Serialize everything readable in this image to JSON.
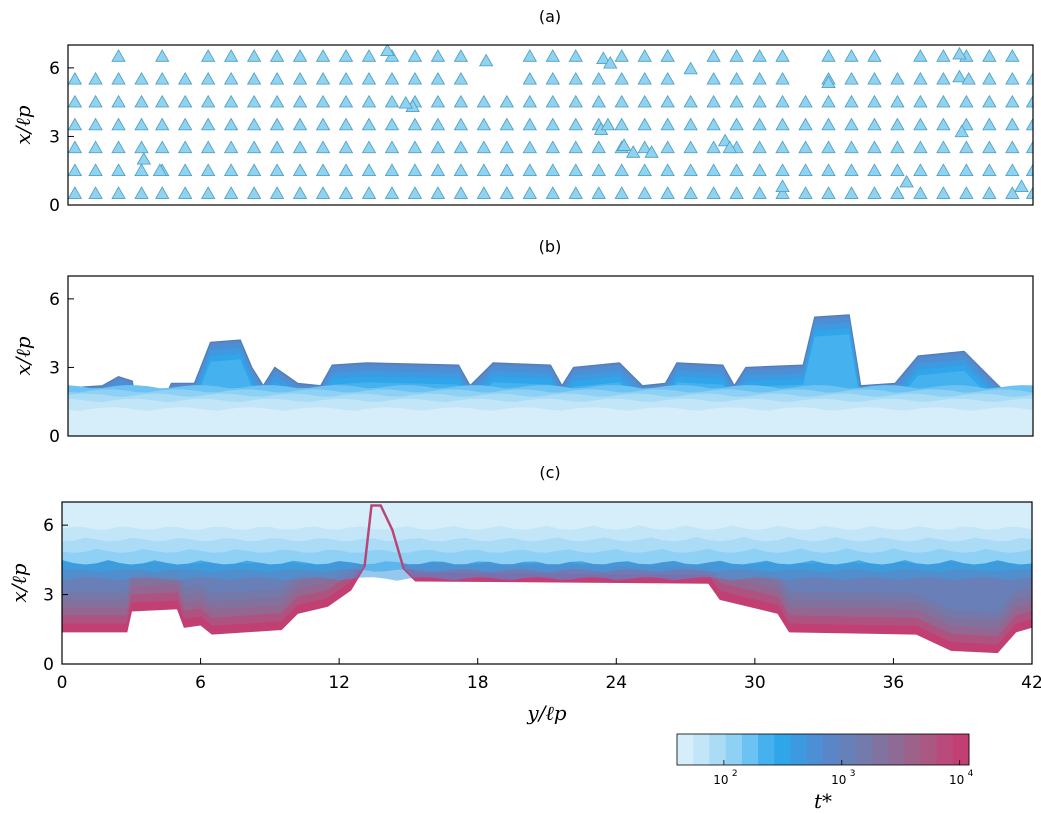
{
  "chart_data": [
    {
      "type": "scatter",
      "panel_label": "(a)",
      "ylabel": "x/ℓp",
      "xlim": [
        0,
        42
      ],
      "ylim": [
        0,
        7
      ],
      "yticks": [
        "0",
        "3",
        "6"
      ],
      "ytick_values": [
        0,
        3,
        6
      ],
      "marker": "triangle",
      "marker_color": "#8fd3f0",
      "rows": [
        {
          "y": 0.5,
          "x": [
            0.3,
            1.2,
            2.2,
            3.2,
            4.1,
            5.1,
            6.1,
            7.1,
            8.1,
            9.1,
            10.1,
            11.1,
            12.1,
            13.1,
            14.1,
            15.1,
            16.1,
            17.1,
            18.1,
            19.1,
            20.1,
            21.1,
            22.1,
            23.1,
            24.1,
            25.1,
            26.1,
            27.1,
            28.1,
            29.1,
            30.1,
            31.1,
            32.1,
            33.1,
            34.1,
            35.1,
            36.1,
            37.1,
            38.1,
            39.1,
            40.1,
            41.1,
            42.0
          ]
        },
        {
          "y": 1.5,
          "x": [
            0.3,
            1.2,
            2.2,
            3.2,
            4.1,
            5.1,
            6.1,
            7.1,
            8.1,
            9.1,
            10.1,
            11.1,
            12.1,
            13.1,
            14.1,
            15.1,
            16.1,
            17.1,
            18.1,
            19.1,
            20.1,
            21.1,
            22.1,
            23.1,
            24.1,
            25.1,
            26.1,
            27.1,
            28.1,
            29.1,
            30.1,
            31.1,
            32.1,
            33.1,
            34.1,
            35.1,
            36.1,
            37.1,
            38.1,
            39.1,
            40.1,
            41.1,
            42.0
          ]
        },
        {
          "y": 2.5,
          "x": [
            0.3,
            1.2,
            2.2,
            3.2,
            4.1,
            5.1,
            6.1,
            7.1,
            8.1,
            9.1,
            10.1,
            11.1,
            12.1,
            13.1,
            14.1,
            15.1,
            16.1,
            17.1,
            18.1,
            19.1,
            20.1,
            21.1,
            22.1,
            23.1,
            24.1,
            25.1,
            26.1,
            27.1,
            28.1,
            29.1,
            30.1,
            31.1,
            32.1,
            33.1,
            34.1,
            35.1,
            36.1,
            37.1,
            38.1,
            39.1,
            40.1,
            41.1,
            42.0
          ]
        },
        {
          "y": 3.5,
          "x": [
            0.3,
            1.2,
            2.2,
            3.2,
            4.1,
            5.1,
            6.1,
            7.1,
            8.1,
            9.1,
            10.1,
            11.1,
            12.1,
            13.1,
            14.1,
            15.1,
            16.1,
            17.1,
            18.1,
            19.1,
            20.1,
            21.1,
            22.1,
            23.1,
            24.1,
            25.1,
            26.1,
            27.1,
            28.1,
            29.1,
            30.1,
            31.1,
            32.1,
            33.1,
            34.1,
            35.1,
            36.1,
            37.1,
            38.1,
            39.1,
            40.1,
            41.1,
            42.0
          ]
        },
        {
          "y": 4.5,
          "x": [
            0.3,
            1.2,
            2.2,
            3.2,
            4.1,
            5.1,
            6.1,
            7.1,
            8.1,
            9.1,
            10.1,
            11.1,
            12.1,
            13.1,
            14.1,
            15.1,
            16.1,
            17.1,
            18.1,
            19.1,
            20.1,
            21.1,
            22.1,
            23.1,
            24.1,
            25.1,
            26.1,
            27.1,
            28.1,
            29.1,
            30.1,
            31.1,
            32.1,
            33.1,
            34.1,
            35.1,
            36.1,
            37.1,
            38.1,
            39.1,
            40.1,
            41.1,
            42.0
          ]
        },
        {
          "y": 5.5,
          "x": [
            0.3,
            1.2,
            2.2,
            3.2,
            4.1,
            5.1,
            6.1,
            7.1,
            8.1,
            9.1,
            10.1,
            11.1,
            12.1,
            13.1,
            14.1,
            15.1,
            16.1,
            17.1,
            20.1,
            21.1,
            22.1,
            23.1,
            24.1,
            25.1,
            26.1,
            28.1,
            29.1,
            30.1,
            31.1,
            33.1,
            34.1,
            35.1,
            36.1,
            37.1,
            38.1,
            40.1,
            41.1,
            42.0
          ]
        },
        {
          "y": 6.5,
          "x": [
            2.2,
            4.1,
            6.1,
            7.1,
            8.1,
            9.1,
            10.1,
            11.1,
            12.1,
            13.1,
            14.1,
            15.1,
            16.1,
            17.1,
            20.1,
            21.1,
            22.1,
            24.1,
            25.1,
            26.1,
            28.1,
            29.1,
            30.1,
            31.1,
            33.1,
            34.1,
            35.1,
            37.1,
            38.1,
            39.1,
            40.1,
            41.1
          ]
        }
      ],
      "extra_points": [
        [
          13.9,
          6.75
        ],
        [
          18.2,
          6.3
        ],
        [
          23.3,
          6.4
        ],
        [
          23.6,
          6.2
        ],
        [
          27.1,
          5.95
        ],
        [
          33.1,
          5.35
        ],
        [
          38.8,
          6.6
        ],
        [
          38.8,
          5.6
        ],
        [
          39.2,
          5.5
        ],
        [
          15.0,
          4.3
        ],
        [
          14.7,
          4.45
        ],
        [
          23.2,
          3.3
        ],
        [
          23.5,
          3.5
        ],
        [
          38.9,
          3.2
        ],
        [
          24.2,
          2.6
        ],
        [
          24.6,
          2.3
        ],
        [
          25.4,
          2.3
        ],
        [
          28.6,
          2.8
        ],
        [
          28.8,
          2.5
        ],
        [
          3.3,
          2.0
        ],
        [
          4.0,
          1.5
        ],
        [
          31.1,
          0.8
        ],
        [
          36.5,
          1.0
        ],
        [
          41.5,
          0.8
        ]
      ]
    },
    {
      "type": "heatmap",
      "panel_label": "(b)",
      "ylabel": "x/ℓp",
      "xlim": [
        0,
        42
      ],
      "ylim": [
        0,
        7
      ],
      "yticks": [
        "0",
        "3",
        "6"
      ],
      "ytick_values": [
        0,
        3,
        6
      ],
      "front_profile": [
        [
          0,
          2.1
        ],
        [
          1.5,
          2.2
        ],
        [
          2.2,
          2.6
        ],
        [
          2.8,
          2.4
        ],
        [
          3.0,
          1.25
        ],
        [
          4.0,
          1.25
        ],
        [
          4.5,
          2.3
        ],
        [
          5.5,
          2.3
        ],
        [
          6.2,
          4.1
        ],
        [
          7.5,
          4.2
        ],
        [
          8.0,
          3.0
        ],
        [
          8.5,
          2.2
        ],
        [
          9.0,
          3.0
        ],
        [
          10.0,
          2.3
        ],
        [
          11.0,
          2.2
        ],
        [
          11.5,
          3.1
        ],
        [
          13.0,
          3.2
        ],
        [
          17.0,
          3.1
        ],
        [
          17.5,
          2.2
        ],
        [
          18.5,
          3.2
        ],
        [
          21.0,
          3.1
        ],
        [
          21.5,
          2.2
        ],
        [
          22.0,
          3.0
        ],
        [
          24.0,
          3.2
        ],
        [
          25.0,
          2.2
        ],
        [
          26.0,
          2.3
        ],
        [
          26.5,
          3.2
        ],
        [
          28.5,
          3.1
        ],
        [
          29.0,
          2.2
        ],
        [
          29.5,
          3.0
        ],
        [
          32.0,
          3.1
        ],
        [
          32.5,
          5.2
        ],
        [
          34.0,
          5.3
        ],
        [
          34.5,
          2.2
        ],
        [
          36.0,
          2.3
        ],
        [
          37.0,
          3.5
        ],
        [
          39.0,
          3.7
        ],
        [
          40.5,
          2.2
        ],
        [
          41.5,
          1.3
        ],
        [
          42,
          1.3
        ]
      ]
    },
    {
      "type": "heatmap",
      "panel_label": "(c)",
      "xlabel": "y/ℓp",
      "ylabel": "x/ℓp",
      "xlim": [
        0,
        42
      ],
      "ylim": [
        0,
        7
      ],
      "xticks": [
        "0",
        "6",
        "12",
        "18",
        "24",
        "30",
        "36",
        "42"
      ],
      "xtick_values": [
        0,
        6,
        12,
        18,
        24,
        30,
        36,
        42
      ],
      "yticks": [
        "0",
        "3",
        "6"
      ],
      "ytick_values": [
        0,
        3,
        6
      ],
      "light_band_bottom": 4.5,
      "front_profile": [
        [
          0,
          1.4
        ],
        [
          2.8,
          1.4
        ],
        [
          3.0,
          2.3
        ],
        [
          5.0,
          2.4
        ],
        [
          5.3,
          1.6
        ],
        [
          6.0,
          1.7
        ],
        [
          6.5,
          1.3
        ],
        [
          9.5,
          1.5
        ],
        [
          10.2,
          2.2
        ],
        [
          11.5,
          2.5
        ],
        [
          12.5,
          3.2
        ],
        [
          13.1,
          4.2
        ],
        [
          13.4,
          6.85
        ],
        [
          13.8,
          6.85
        ],
        [
          14.3,
          5.8
        ],
        [
          14.8,
          4.1
        ],
        [
          15.3,
          3.6
        ],
        [
          28.0,
          3.5
        ],
        [
          28.5,
          2.8
        ],
        [
          31.0,
          2.2
        ],
        [
          31.5,
          1.4
        ],
        [
          37.0,
          1.3
        ],
        [
          38.5,
          0.6
        ],
        [
          40.5,
          0.5
        ],
        [
          41.3,
          1.4
        ],
        [
          42,
          1.6
        ]
      ]
    }
  ],
  "colorbar": {
    "label": "t*",
    "scale": "log",
    "range": [
      40,
      12000
    ],
    "ticks": [
      "10",
      "10",
      "10"
    ],
    "tick_exponents": [
      "2",
      "3",
      "4"
    ],
    "tick_values": [
      100,
      1000,
      10000
    ],
    "colors": [
      "#d6eefa",
      "#c2e6f8",
      "#aadcf6",
      "#8fd1f4",
      "#6cc2f2",
      "#45b2ef",
      "#2fa5ea",
      "#3e9ae0",
      "#4d8fd5",
      "#5a86c8",
      "#6680ba",
      "#737aac",
      "#80739f",
      "#8e6b94",
      "#9c628a",
      "#aa5782",
      "#b84b7b",
      "#c23f74"
    ]
  }
}
